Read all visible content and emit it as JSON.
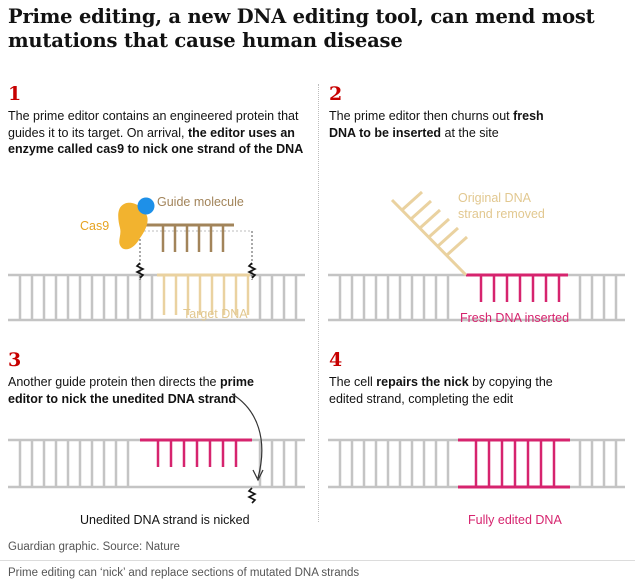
{
  "title": "Prime editing, a new DNA editing tool, can mend most mutations that cause human disease",
  "colors": {
    "step_number": "#c70000",
    "dna_gray": "#c4c4c4",
    "edited_pink": "#d6246e",
    "guide_brown": "#a2845a",
    "removed_tan": "#ead2a0",
    "cas9_gold": "#f2b32f",
    "cas9_blue": "#1e90e8"
  },
  "panels": [
    {
      "number": "1",
      "text_parts": [
        {
          "t": "The prime editor contains an engineered protein that guides it to its target. On arrival, ",
          "b": false
        },
        {
          "t": "the editor uses an enzyme called cas9 to nick one strand of the DNA",
          "b": true
        }
      ],
      "labels": {
        "guide": "Guide molecule",
        "cas9": "Cas9",
        "target": "Target DNA"
      }
    },
    {
      "number": "2",
      "text_parts": [
        {
          "t": "The prime editor then churns out ",
          "b": false
        },
        {
          "t": "fresh DNA to be inserted",
          "b": true
        },
        {
          "t": " at the site",
          "b": false
        }
      ],
      "labels": {
        "removed": "Original DNA strand removed",
        "fresh": "Fresh DNA inserted"
      }
    },
    {
      "number": "3",
      "text_parts": [
        {
          "t": "Another guide protein then directs the ",
          "b": false
        },
        {
          "t": "prime editor to nick the unedited DNA strand",
          "b": true
        }
      ],
      "labels": {
        "nicked": "Unedited DNA strand is nicked"
      }
    },
    {
      "number": "4",
      "text_parts": [
        {
          "t": "The cell ",
          "b": false
        },
        {
          "t": "repairs the nick",
          "b": true
        },
        {
          "t": " by copying the edited strand, completing the edit",
          "b": false
        }
      ],
      "labels": {
        "fully": "Fully edited DNA"
      }
    }
  ],
  "source": "Guardian graphic. Source: Nature",
  "caption": "Prime editing can ‘nick’ and replace sections of mutated DNA strands"
}
